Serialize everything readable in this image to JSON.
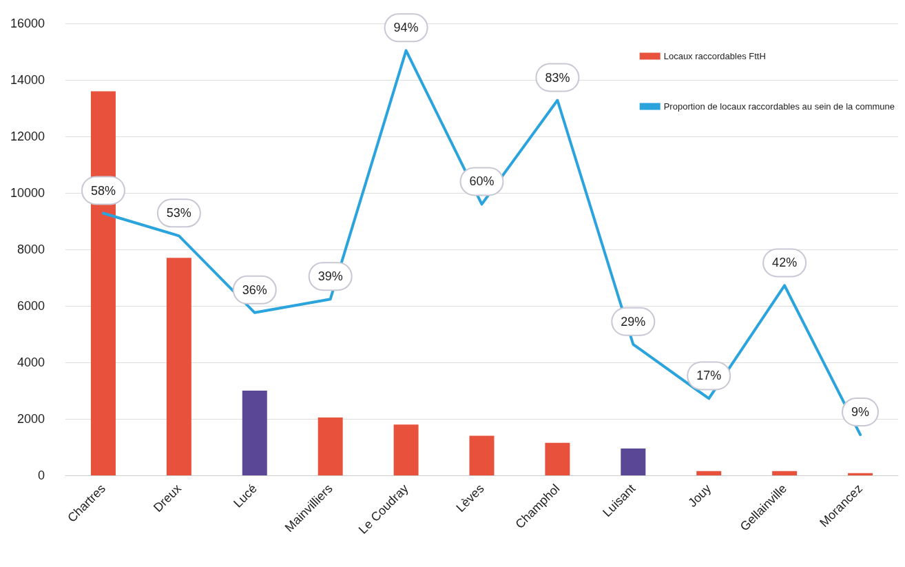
{
  "chart_data": {
    "type": "bar",
    "categories": [
      "Chartres",
      "Dreux",
      "Lucé",
      "Mainvilliers",
      "Le Coudray",
      "Lèves",
      "Champhol",
      "Luisant",
      "Jouy",
      "Gellainville",
      "Morancez"
    ],
    "series": [
      {
        "name": "Locaux raccordables FttH",
        "color": "#e8523c",
        "colors": [
          "#e8523c",
          "#e8523c",
          "#5a4896",
          "#e8523c",
          "#e8523c",
          "#e8523c",
          "#e8523c",
          "#5a4896",
          "#e8523c",
          "#e8523c",
          "#e8523c"
        ],
        "values": [
          13600,
          7700,
          3000,
          2050,
          1800,
          1400,
          1150,
          950,
          150,
          150,
          80
        ]
      },
      {
        "name": "Proportion de locaux raccordables au sein de la commune",
        "type": "line",
        "axis": "y2",
        "color": "#2ba3dc",
        "values": [
          58,
          53,
          36,
          39,
          94,
          60,
          83,
          29,
          17,
          42,
          9
        ],
        "value_labels": [
          "58%",
          "53%",
          "36%",
          "39%",
          "94%",
          "60%",
          "83%",
          "29%",
          "17%",
          "42%",
          "9%"
        ]
      }
    ],
    "ylim": [
      0,
      16000
    ],
    "yticks": [
      0,
      2000,
      4000,
      6000,
      8000,
      10000,
      12000,
      14000,
      16000
    ],
    "y2lim": [
      0,
      100
    ],
    "grid": "y",
    "legend": "top right",
    "marker": "none"
  }
}
